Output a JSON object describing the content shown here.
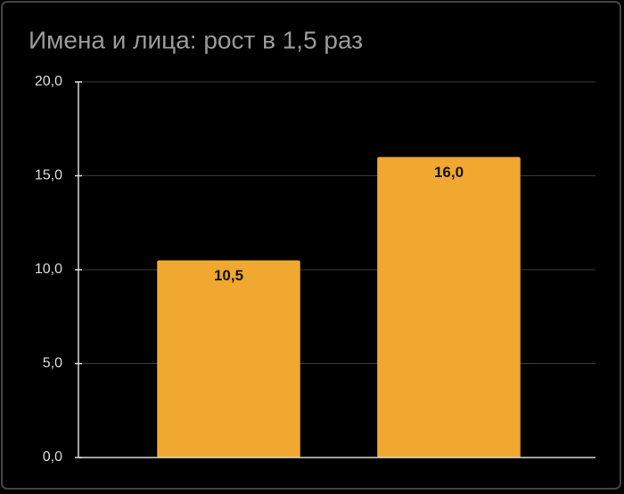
{
  "chart_data": {
    "type": "bar",
    "title": "Имена и лица: рост в 1,5 раз",
    "categories": [
      null,
      null
    ],
    "values": [
      10.5,
      16.0
    ],
    "value_labels": [
      "10,5",
      "16,0"
    ],
    "color": "#f0a830",
    "ylim": [
      0,
      20
    ],
    "yticks": [
      {
        "value": 0,
        "label": "0,0"
      },
      {
        "value": 5,
        "label": "5,0"
      },
      {
        "value": 10,
        "label": "10,0"
      },
      {
        "value": 15,
        "label": "15,0"
      },
      {
        "value": 20,
        "label": "20,0"
      }
    ],
    "grid": true
  }
}
